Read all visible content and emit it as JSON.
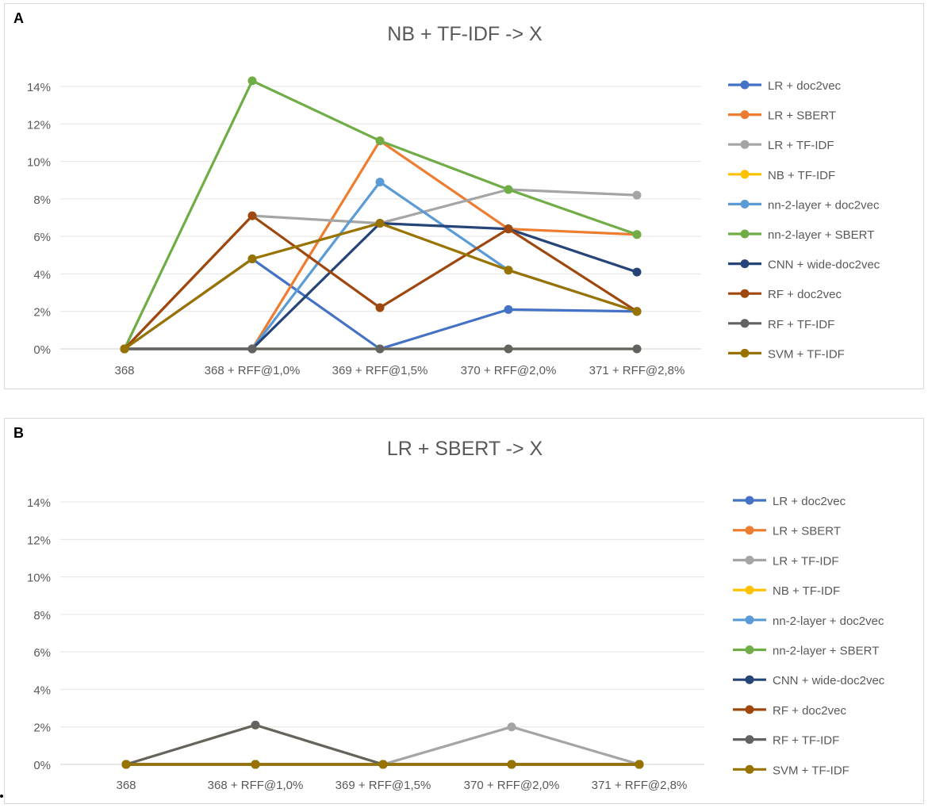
{
  "chart_data": [
    {
      "panel_label": "A",
      "type": "line",
      "title": "NB + TF-IDF -> X",
      "categories": [
        "368",
        "368 + RFF@1,0%",
        "369 + RFF@1,5%",
        "370 + RFF@2,0%",
        "371 + RFF@2,8%"
      ],
      "ylim": [
        0,
        14
      ],
      "yticks": [
        "0%",
        "2%",
        "4%",
        "6%",
        "8%",
        "10%",
        "12%",
        "14%"
      ],
      "grid": true,
      "legend": "right",
      "series": [
        {
          "name": "LR + doc2vec",
          "color": "#4472C4",
          "values": [
            0,
            4.8,
            0,
            2.1,
            2.0
          ]
        },
        {
          "name": "LR + SBERT",
          "color": "#ED7D31",
          "values": [
            0,
            0,
            11.1,
            6.4,
            6.1
          ]
        },
        {
          "name": "LR + TF-IDF",
          "color": "#A5A5A5",
          "values": [
            0,
            7.1,
            6.7,
            8.5,
            8.2
          ]
        },
        {
          "name": "NB + TF-IDF",
          "color": "#FFC000",
          "values": [
            0,
            0,
            0,
            0,
            0
          ]
        },
        {
          "name": "nn-2-layer + doc2vec",
          "color": "#5B9BD5",
          "values": [
            0,
            0,
            8.9,
            4.2,
            2.0
          ]
        },
        {
          "name": "nn-2-layer + SBERT",
          "color": "#70AD47",
          "values": [
            0,
            14.3,
            11.1,
            8.5,
            6.1
          ]
        },
        {
          "name": "CNN + wide-doc2vec",
          "color": "#264478",
          "values": [
            0,
            0,
            6.7,
            6.4,
            4.1
          ]
        },
        {
          "name": "RF + doc2vec",
          "color": "#9E480E",
          "values": [
            0,
            7.1,
            2.2,
            6.4,
            2.0
          ]
        },
        {
          "name": "RF + TF-IDF",
          "color": "#636363",
          "values": [
            0,
            0,
            0,
            0,
            0
          ]
        },
        {
          "name": "SVM + TF-IDF",
          "color": "#997300",
          "values": [
            0,
            4.8,
            6.7,
            4.2,
            2.0
          ]
        }
      ]
    },
    {
      "panel_label": "B",
      "type": "line",
      "title": "LR + SBERT -> X",
      "categories": [
        "368",
        "368 + RFF@1,0%",
        "369 + RFF@1,5%",
        "370 + RFF@2,0%",
        "371 + RFF@2,8%"
      ],
      "ylim": [
        0,
        14
      ],
      "yticks": [
        "0%",
        "2%",
        "4%",
        "6%",
        "8%",
        "10%",
        "12%",
        "14%"
      ],
      "grid": true,
      "legend": "right",
      "series": [
        {
          "name": "LR + doc2vec",
          "color": "#4472C4",
          "values": [
            0,
            0,
            0,
            0,
            0
          ]
        },
        {
          "name": "LR + SBERT",
          "color": "#ED7D31",
          "values": [
            0,
            0,
            0,
            0,
            0
          ]
        },
        {
          "name": "LR + TF-IDF",
          "color": "#A5A5A5",
          "values": [
            0,
            0,
            0,
            2.0,
            0
          ]
        },
        {
          "name": "NB + TF-IDF",
          "color": "#FFC000",
          "values": [
            0,
            2.1,
            0,
            0,
            0
          ]
        },
        {
          "name": "nn-2-layer + doc2vec",
          "color": "#5B9BD5",
          "values": [
            0,
            0,
            0,
            0,
            0
          ]
        },
        {
          "name": "nn-2-layer + SBERT",
          "color": "#70AD47",
          "values": [
            0,
            0,
            0,
            0,
            0
          ]
        },
        {
          "name": "CNN + wide-doc2vec",
          "color": "#264478",
          "values": [
            0,
            0,
            0,
            0,
            0
          ]
        },
        {
          "name": "RF + doc2vec",
          "color": "#9E480E",
          "values": [
            0,
            0,
            0,
            0,
            0
          ]
        },
        {
          "name": "RF + TF-IDF",
          "color": "#636363",
          "values": [
            0,
            2.1,
            0,
            0,
            0
          ]
        },
        {
          "name": "SVM + TF-IDF",
          "color": "#997300",
          "values": [
            0,
            0,
            0,
            0,
            0
          ]
        }
      ]
    }
  ]
}
